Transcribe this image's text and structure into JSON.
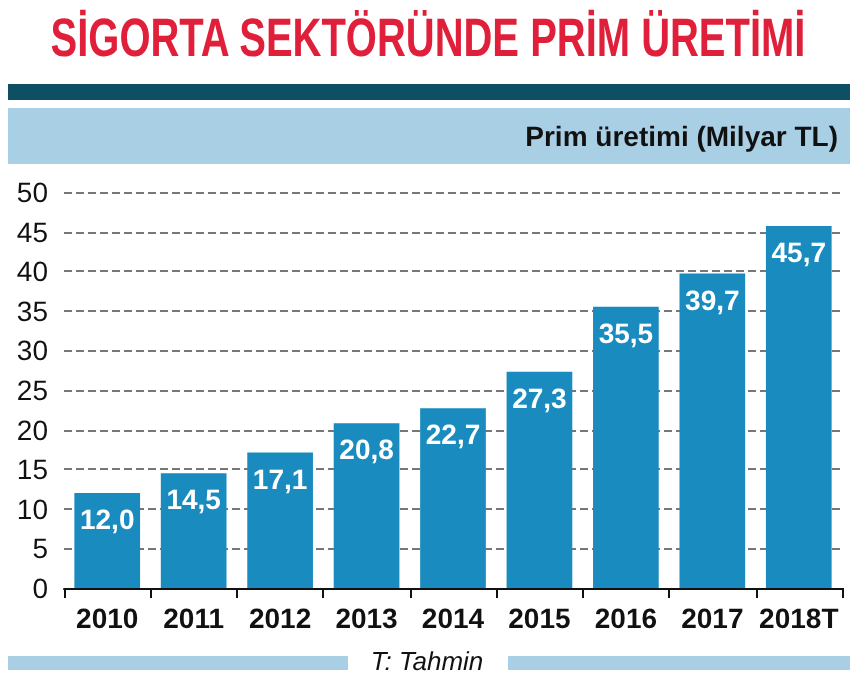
{
  "chart_data": {
    "type": "bar",
    "title": "SİGORTA SEKTÖRÜNDE PRİM ÜRETİMİ",
    "subtitle": "Prim üretimi  (Milyar TL)",
    "annotations": [
      "T: Tahmin"
    ],
    "categories": [
      "2010",
      "2011",
      "2012",
      "2013",
      "2014",
      "2015",
      "2016",
      "2017",
      "2018T"
    ],
    "values": [
      12.0,
      14.5,
      17.1,
      20.8,
      22.7,
      27.3,
      35.5,
      39.7,
      45.7
    ],
    "value_labels": [
      "12,0",
      "14,5",
      "17,1",
      "20,8",
      "22,7",
      "27,3",
      "35,5",
      "39,7",
      "45,7"
    ],
    "color": "#1a8bbf",
    "ylim": [
      0,
      50
    ],
    "yticks": [
      0,
      5,
      10,
      15,
      20,
      25,
      30,
      35,
      40,
      45,
      50
    ],
    "grid": "y"
  }
}
